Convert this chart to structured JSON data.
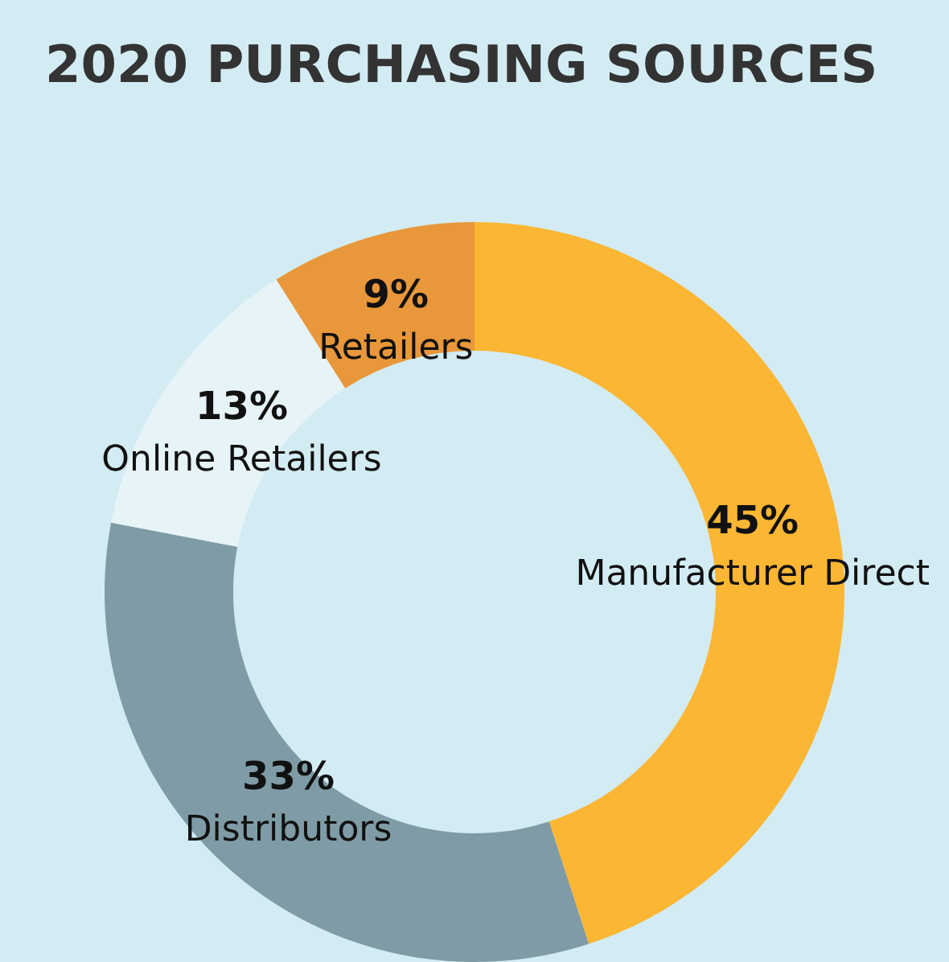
{
  "chart_data": {
    "type": "donut",
    "title": "2020 PURCHASING SOURCES",
    "categories": [
      "Manufacturer Direct",
      "Distributors",
      "Online Retailers",
      "Retailers"
    ],
    "values": [
      45,
      33,
      13,
      9
    ],
    "value_labels": [
      "45%",
      "33%",
      "13%",
      "9%"
    ],
    "colors": [
      "#fbb634",
      "#7f9ca6",
      "#e6f4f8",
      "#e8973a"
    ],
    "legend": false
  }
}
